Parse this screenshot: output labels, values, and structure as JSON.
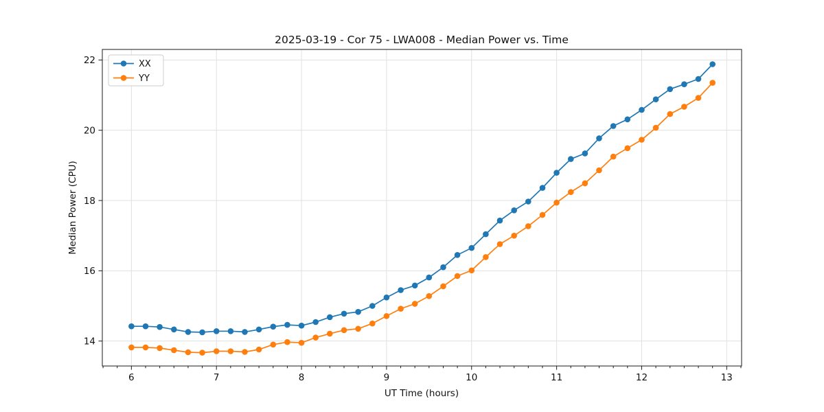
{
  "chart_data": {
    "type": "line",
    "title": "2025-03-19 - Cor 75 - LWA008 - Median Power vs. Time",
    "xlabel": "UT Time (hours)",
    "ylabel": "Median Power (CPU)",
    "xlim": [
      5.658,
      13.175
    ],
    "ylim": [
      13.29,
      22.3
    ],
    "xticks": [
      6,
      7,
      8,
      9,
      10,
      11,
      12,
      13
    ],
    "yticks": [
      14,
      16,
      18,
      20,
      22
    ],
    "x_minor_subdivisions": 6,
    "grid": true,
    "legend_position": "upper left",
    "marker": "circle",
    "x": [
      6,
      6.1667,
      6.3333,
      6.5,
      6.6667,
      6.8333,
      7,
      7.1667,
      7.3333,
      7.5,
      7.6667,
      7.8333,
      8,
      8.1667,
      8.3333,
      8.5,
      8.6667,
      8.8333,
      9,
      9.1667,
      9.3333,
      9.5,
      9.6667,
      9.8333,
      10,
      10.1667,
      10.3333,
      10.5,
      10.6667,
      10.8333,
      11,
      11.1667,
      11.3333,
      11.5,
      11.6667,
      11.8333,
      12,
      12.1667,
      12.3333,
      12.5,
      12.6667,
      12.8333
    ],
    "series": [
      {
        "name": "XX",
        "color": "#1f77b4",
        "values": [
          14.42,
          14.42,
          14.4,
          14.33,
          14.26,
          14.25,
          14.28,
          14.28,
          14.26,
          14.33,
          14.41,
          14.46,
          14.44,
          14.54,
          14.68,
          14.78,
          14.83,
          15.0,
          15.24,
          15.45,
          15.58,
          15.81,
          16.1,
          16.45,
          16.65,
          17.04,
          17.43,
          17.72,
          17.97,
          18.36,
          18.79,
          19.18,
          19.34,
          19.77,
          20.12,
          20.31,
          20.58,
          20.88,
          21.17,
          21.31,
          21.46,
          21.88
        ]
      },
      {
        "name": "YY",
        "color": "#ff7f0e",
        "values": [
          13.82,
          13.82,
          13.8,
          13.74,
          13.68,
          13.67,
          13.71,
          13.71,
          13.69,
          13.76,
          13.9,
          13.97,
          13.95,
          14.1,
          14.21,
          14.31,
          14.35,
          14.5,
          14.71,
          14.92,
          15.06,
          15.28,
          15.56,
          15.85,
          16.01,
          16.39,
          16.76,
          17.0,
          17.27,
          17.59,
          17.94,
          18.24,
          18.49,
          18.86,
          19.25,
          19.49,
          19.73,
          20.07,
          20.46,
          20.67,
          20.92,
          21.35
        ]
      }
    ]
  }
}
